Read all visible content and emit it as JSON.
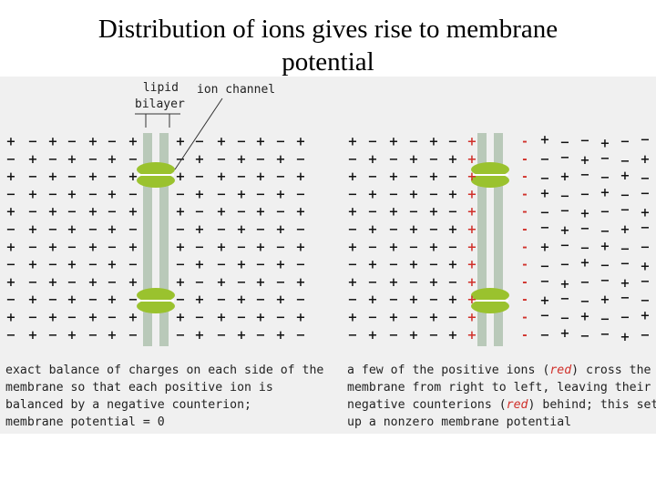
{
  "title": {
    "line1": "Distribution of ions gives rise to membrane",
    "line2": "potential"
  },
  "labels": {
    "lipid_line1": "lipid",
    "lipid_line2": "bilayer",
    "ion_channel": "ion channel"
  },
  "left_caption": {
    "line1": "exact balance of charges on each side of the",
    "line2": "membrane so that each positive ion is",
    "line3": "balanced by a negative counterion;",
    "line4": "membrane potential = 0"
  },
  "right_caption": {
    "line1_a": "a few of the positive ions (",
    "line1_red": "red",
    "line1_b": ") cross the",
    "line2": "membrane from right to left, leaving their",
    "line3_a": "negative counterions (",
    "line3_red": "red",
    "line3_b": ") behind; this sets",
    "line4": "up a nonzero membrane potential"
  },
  "colors": {
    "membrane": "#b9c9b9",
    "channel": "#9ac22e",
    "red_ion": "#d0302a",
    "ion": "#111111",
    "panel_bg": "#f0f0f0"
  },
  "symbols": {
    "plus": "+",
    "minus": "−",
    "minus_short": "-"
  }
}
